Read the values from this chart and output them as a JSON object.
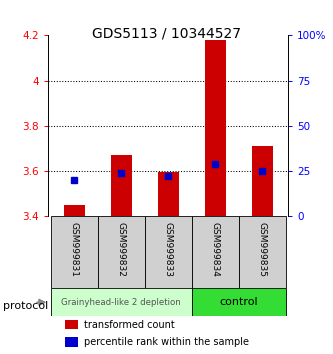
{
  "title": "GDS5113 / 10344527",
  "samples": [
    "GSM999831",
    "GSM999832",
    "GSM999833",
    "GSM999834",
    "GSM999835"
  ],
  "bar_values": [
    3.45,
    3.67,
    3.595,
    4.18,
    3.71
  ],
  "bar_bottom": 3.4,
  "percentile_values": [
    20,
    24,
    22,
    29,
    25
  ],
  "bar_color": "#cc0000",
  "dot_color": "#0000cc",
  "ylim_left": [
    3.4,
    4.2
  ],
  "ylim_right": [
    0,
    100
  ],
  "yticks_left": [
    3.4,
    3.6,
    3.8,
    4.0,
    4.2
  ],
  "yticks_right": [
    0,
    25,
    50,
    75,
    100
  ],
  "ytick_labels_left": [
    "3.4",
    "3.6",
    "3.8",
    "4",
    "4.2"
  ],
  "ytick_labels_right": [
    "0",
    "25",
    "50",
    "75",
    "100%"
  ],
  "gridlines": [
    3.6,
    3.8,
    4.0
  ],
  "group1_indices": [
    0,
    1,
    2
  ],
  "group2_indices": [
    3,
    4
  ],
  "group1_label": "Grainyhead-like 2 depletion",
  "group2_label": "control",
  "group1_color": "#ccffcc",
  "group2_color": "#33dd33",
  "protocol_label": "protocol",
  "legend1": "transformed count",
  "legend2": "percentile rank within the sample",
  "title_fontsize": 10,
  "tick_fontsize": 7.5,
  "label_fontsize": 7.5
}
